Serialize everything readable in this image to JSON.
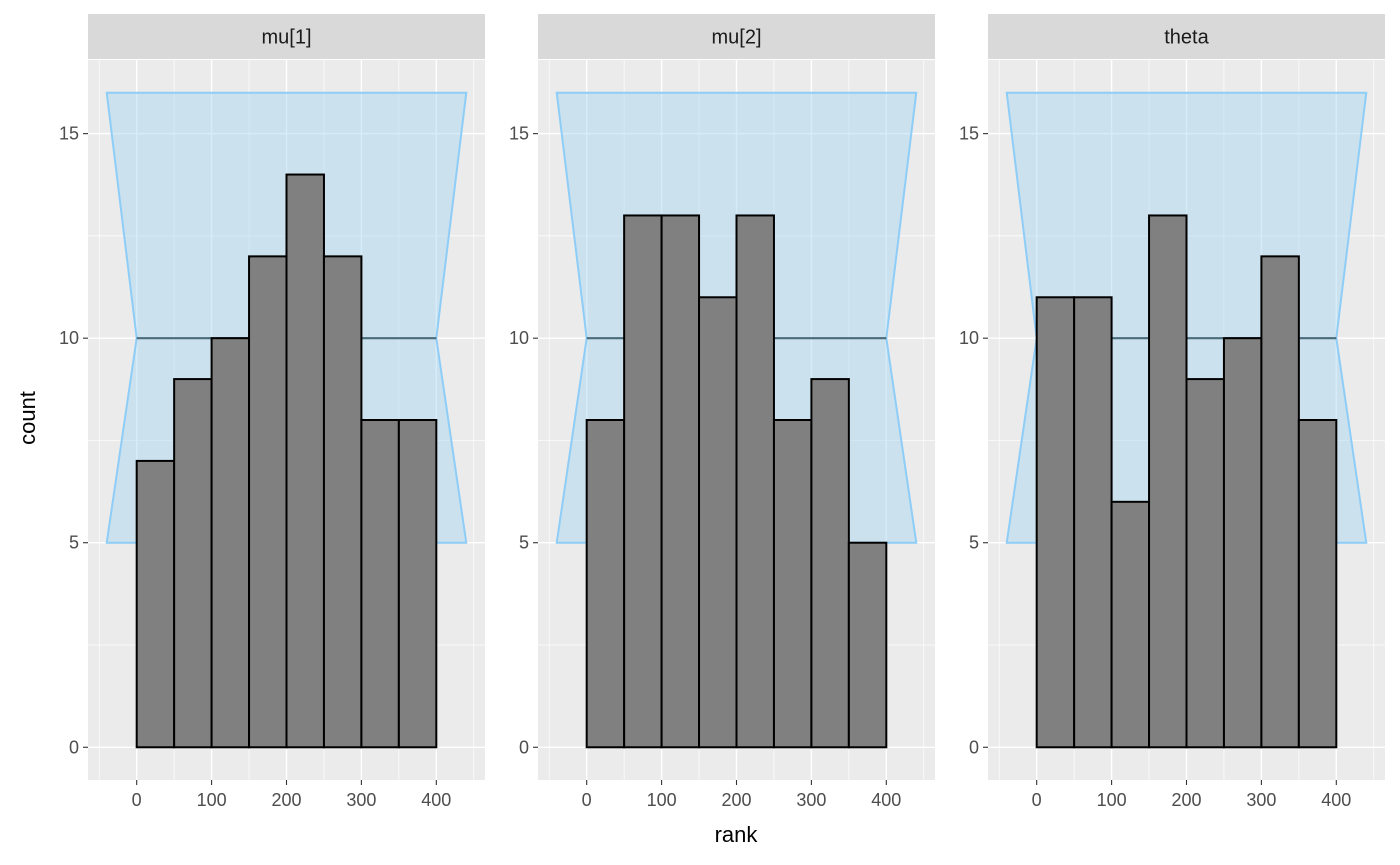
{
  "chart_data": {
    "type": "bar",
    "xlabel": "rank",
    "ylabel": "count",
    "x_ticks": [
      0,
      100,
      200,
      300,
      400
    ],
    "y_ticks": [
      0,
      5,
      10,
      15
    ],
    "xlim": [
      -65,
      465
    ],
    "ylim": [
      -0.8,
      16.8
    ],
    "bin_edges": [
      0,
      50,
      100,
      150,
      200,
      250,
      300,
      350,
      400
    ],
    "band": {
      "lower": 5,
      "median": 10,
      "upper": 16,
      "x_outer": [
        -40,
        440
      ],
      "x_inner": [
        0,
        400
      ],
      "fill_color": "#a3d5f0",
      "line_color": "#8ecdf7"
    },
    "bar_color": "#808080",
    "panels": [
      {
        "name": "mu[1]",
        "values": [
          7,
          9,
          10,
          12,
          14,
          12,
          8,
          8
        ]
      },
      {
        "name": "mu[2]",
        "values": [
          8,
          13,
          13,
          11,
          13,
          8,
          9,
          5
        ]
      },
      {
        "name": "theta",
        "values": [
          11,
          11,
          6,
          13,
          9,
          10,
          12,
          8
        ]
      }
    ]
  }
}
